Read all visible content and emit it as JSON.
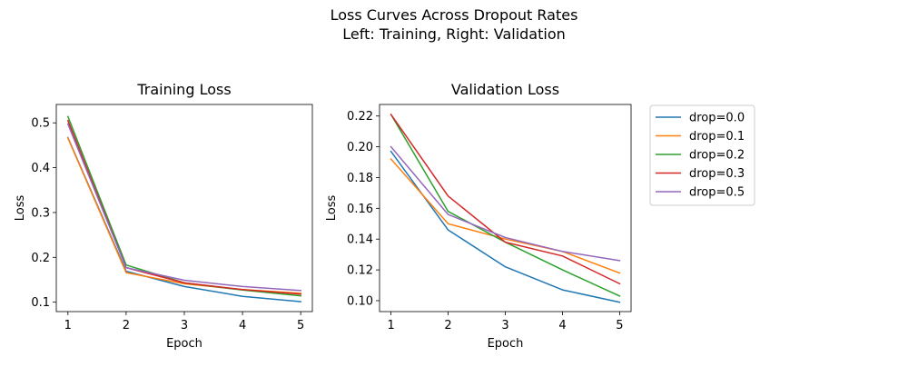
{
  "figure": {
    "suptitle_line1": "Loss Curves Across Dropout Rates",
    "suptitle_line2": "Left: Training, Right: Validation"
  },
  "chart_data": [
    {
      "type": "line",
      "title": "Training Loss",
      "xlabel": "Epoch",
      "ylabel": "Loss",
      "x": [
        1,
        2,
        3,
        4,
        5
      ],
      "xticks": [
        1,
        2,
        3,
        4,
        5
      ],
      "yticks": [
        0.1,
        0.2,
        0.3,
        0.4,
        0.5
      ],
      "ytick_labels": [
        "0.1",
        "0.2",
        "0.3",
        "0.4",
        "0.5"
      ],
      "xlim": [
        0.8,
        5.2
      ],
      "ylim": [
        0.079,
        0.541
      ],
      "grid": false,
      "series": [
        {
          "name": "drop=0.0",
          "color": "#1f77b4",
          "values": [
            0.467,
            0.169,
            0.135,
            0.113,
            0.101
          ]
        },
        {
          "name": "drop=0.1",
          "color": "#ff7f0e",
          "values": [
            0.466,
            0.166,
            0.141,
            0.128,
            0.12
          ]
        },
        {
          "name": "drop=0.2",
          "color": "#2ca02c",
          "values": [
            0.514,
            0.183,
            0.143,
            0.127,
            0.114
          ]
        },
        {
          "name": "drop=0.3",
          "color": "#d62728",
          "values": [
            0.505,
            0.177,
            0.143,
            0.128,
            0.118
          ]
        },
        {
          "name": "drop=0.5",
          "color": "#9467bd",
          "values": [
            0.497,
            0.177,
            0.149,
            0.135,
            0.126
          ]
        }
      ]
    },
    {
      "type": "line",
      "title": "Validation Loss",
      "xlabel": "Epoch",
      "ylabel": "Loss",
      "x": [
        1,
        2,
        3,
        4,
        5
      ],
      "xticks": [
        1,
        2,
        3,
        4,
        5
      ],
      "yticks": [
        0.1,
        0.12,
        0.14,
        0.16,
        0.18,
        0.2,
        0.22
      ],
      "ytick_labels": [
        "0.10",
        "0.12",
        "0.14",
        "0.16",
        "0.18",
        "0.20",
        "0.22"
      ],
      "xlim": [
        0.8,
        5.2
      ],
      "ylim": [
        0.0929,
        0.2275
      ],
      "grid": false,
      "legend_placement": "outside upper right",
      "series": [
        {
          "name": "drop=0.0",
          "color": "#1f77b4",
          "values": [
            0.197,
            0.146,
            0.122,
            0.107,
            0.099
          ]
        },
        {
          "name": "drop=0.1",
          "color": "#ff7f0e",
          "values": [
            0.192,
            0.15,
            0.14,
            0.132,
            0.118
          ]
        },
        {
          "name": "drop=0.2",
          "color": "#2ca02c",
          "values": [
            0.221,
            0.158,
            0.138,
            0.12,
            0.103
          ]
        },
        {
          "name": "drop=0.3",
          "color": "#d62728",
          "values": [
            0.221,
            0.168,
            0.138,
            0.129,
            0.111
          ]
        },
        {
          "name": "drop=0.5",
          "color": "#9467bd",
          "values": [
            0.2,
            0.156,
            0.141,
            0.132,
            0.126
          ]
        }
      ]
    }
  ]
}
